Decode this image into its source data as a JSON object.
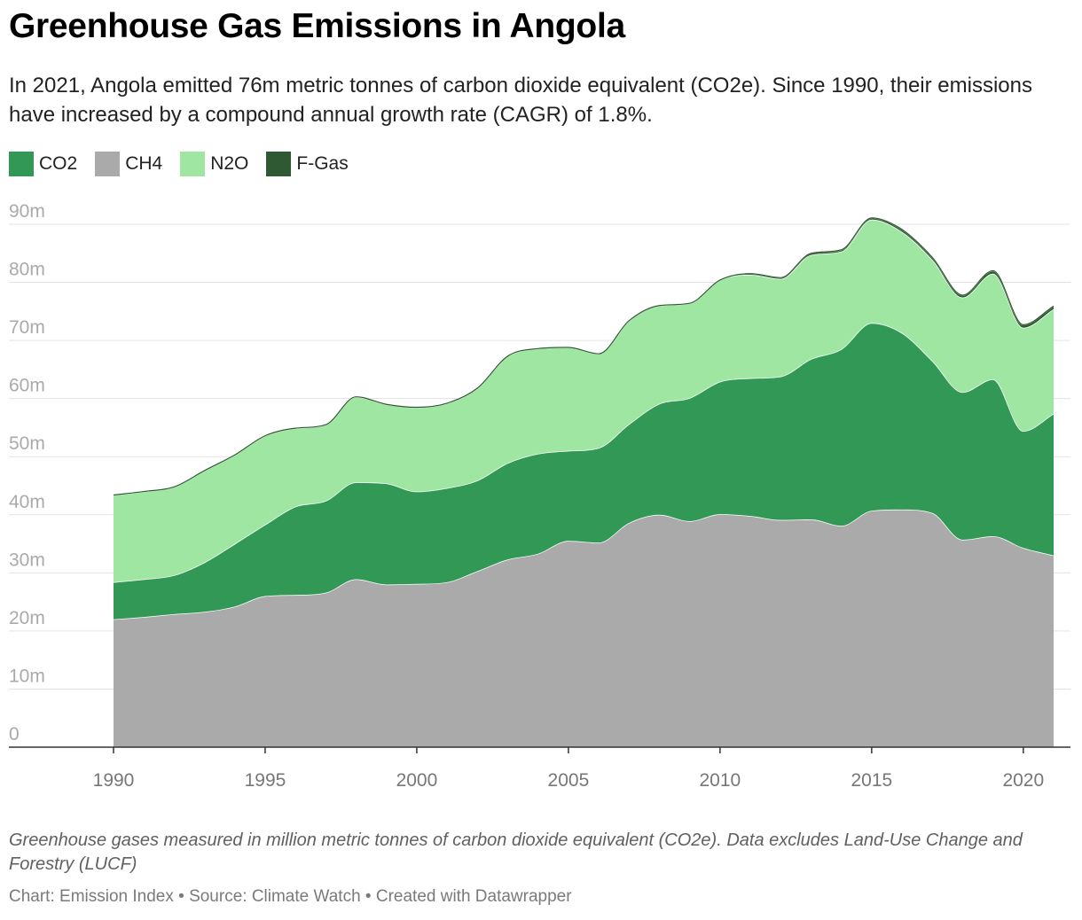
{
  "header": {
    "title": "Greenhouse Gas Emissions in Angola",
    "subtitle": "In 2021, Angola emitted 76m metric tonnes of carbon dioxide equivalent (CO2e). Since 1990, their emissions have increased by a compound annual growth rate (CAGR) of 1.8%."
  },
  "legend": [
    {
      "label": "CO2",
      "color": "#319856"
    },
    {
      "label": "CH4",
      "color": "#aaaaaa"
    },
    {
      "label": "N2O",
      "color": "#a0e6a3"
    },
    {
      "label": "F-Gas",
      "color": "#2f5932"
    }
  ],
  "footer": {
    "notes": "Greenhouse gases measured in million metric tonnes of carbon dioxide equivalent (CO2e). Data excludes Land-Use Change and Forestry (LUCF)",
    "credit": "Chart: Emission Index • Source: Climate Watch • Created with Datawrapper"
  },
  "chart_data": {
    "type": "area",
    "stacked": true,
    "x": [
      1990,
      1991,
      1992,
      1993,
      1994,
      1995,
      1996,
      1997,
      1998,
      1999,
      2000,
      2001,
      2002,
      2003,
      2004,
      2005,
      2006,
      2007,
      2008,
      2009,
      2010,
      2011,
      2012,
      2013,
      2014,
      2015,
      2016,
      2017,
      2018,
      2019,
      2020,
      2021
    ],
    "series": [
      {
        "name": "CH4",
        "color": "#aaaaaa",
        "values": [
          22.0,
          22.4,
          22.9,
          23.3,
          24.2,
          26.0,
          26.2,
          26.6,
          28.9,
          28.0,
          28.1,
          28.4,
          30.3,
          32.3,
          33.3,
          35.5,
          35.2,
          38.6,
          40.0,
          38.9,
          40.1,
          39.8,
          39.1,
          39.2,
          38.1,
          40.7,
          40.9,
          40.3,
          35.7,
          36.3,
          34.3,
          33.0
        ]
      },
      {
        "name": "CO2",
        "color": "#319856",
        "values": [
          6.4,
          6.5,
          6.7,
          8.5,
          10.8,
          12.3,
          15.2,
          15.8,
          16.7,
          17.4,
          15.9,
          16.2,
          15.6,
          16.6,
          17.2,
          15.5,
          16.3,
          17.0,
          19.1,
          21.2,
          22.8,
          23.7,
          24.7,
          27.6,
          30.4,
          32.3,
          30.4,
          26.2,
          25.4,
          27.0,
          20.1,
          24.4
        ]
      },
      {
        "name": "N2O",
        "color": "#a0e6a3",
        "values": [
          15.0,
          15.1,
          15.2,
          15.8,
          15.3,
          15.3,
          13.5,
          13.1,
          14.7,
          13.6,
          14.5,
          14.6,
          15.9,
          18.4,
          18.1,
          17.8,
          16.2,
          17.8,
          16.9,
          16.3,
          17.5,
          17.8,
          16.8,
          17.9,
          16.8,
          17.8,
          17.4,
          17.4,
          16.3,
          18.2,
          17.8,
          18.0
        ]
      },
      {
        "name": "F-Gas",
        "color": "#2f5932",
        "values": [
          0,
          0,
          0,
          0,
          0,
          0,
          0,
          0,
          0,
          0,
          0,
          0,
          0,
          0,
          0,
          0,
          0,
          0,
          0,
          0,
          0,
          0.2,
          0.2,
          0.3,
          0.3,
          0.3,
          0.4,
          0.4,
          0.4,
          0.5,
          0.5,
          0.5
        ]
      }
    ],
    "ylim": [
      0,
      90
    ],
    "y_ticks": [
      0,
      10,
      20,
      30,
      40,
      50,
      60,
      70,
      80,
      90
    ],
    "y_tick_labels": [
      "0",
      "10m",
      "20m",
      "30m",
      "40m",
      "50m",
      "60m",
      "70m",
      "80m",
      "90m"
    ],
    "x_ticks": [
      1990,
      1995,
      2000,
      2005,
      2010,
      2015,
      2020
    ],
    "x_tick_labels": [
      "1990",
      "1995",
      "2000",
      "2005",
      "2010",
      "2015",
      "2020"
    ],
    "grid": true,
    "legend_position": "top-left"
  }
}
